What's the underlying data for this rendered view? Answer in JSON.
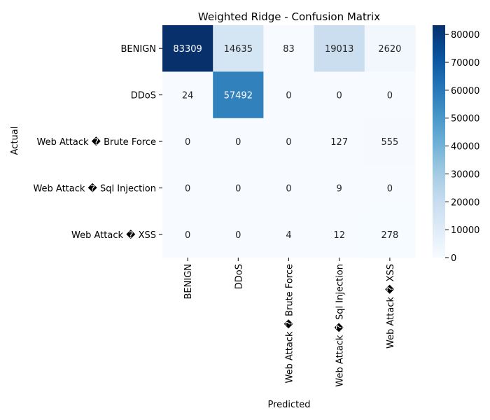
{
  "chart_data": {
    "type": "heatmap",
    "title": "Weighted Ridge - Confusion Matrix",
    "xlabel": "Predicted",
    "ylabel": "Actual",
    "row_labels": [
      "BENIGN",
      "DDoS",
      "Web Attack � Brute Force",
      "Web Attack � Sql Injection",
      "Web Attack � XSS"
    ],
    "col_labels": [
      "BENIGN",
      "DDoS",
      "Web Attack � Brute Force",
      "Web Attack � Sql Injection",
      "Web Attack � XSS"
    ],
    "values": [
      [
        83309,
        14635,
        83,
        19013,
        2620
      ],
      [
        24,
        57492,
        0,
        0,
        0
      ],
      [
        0,
        0,
        0,
        127,
        555
      ],
      [
        0,
        0,
        0,
        9,
        0
      ],
      [
        0,
        0,
        4,
        12,
        278
      ]
    ],
    "colormap": "Blues",
    "color_range": [
      0,
      83309
    ],
    "colorbar_ticks": [
      0,
      10000,
      20000,
      30000,
      40000,
      50000,
      60000,
      70000,
      80000
    ],
    "colorbar_tick_labels": [
      "0",
      "10000",
      "20000",
      "30000",
      "40000",
      "50000",
      "60000",
      "70000",
      "80000"
    ]
  }
}
